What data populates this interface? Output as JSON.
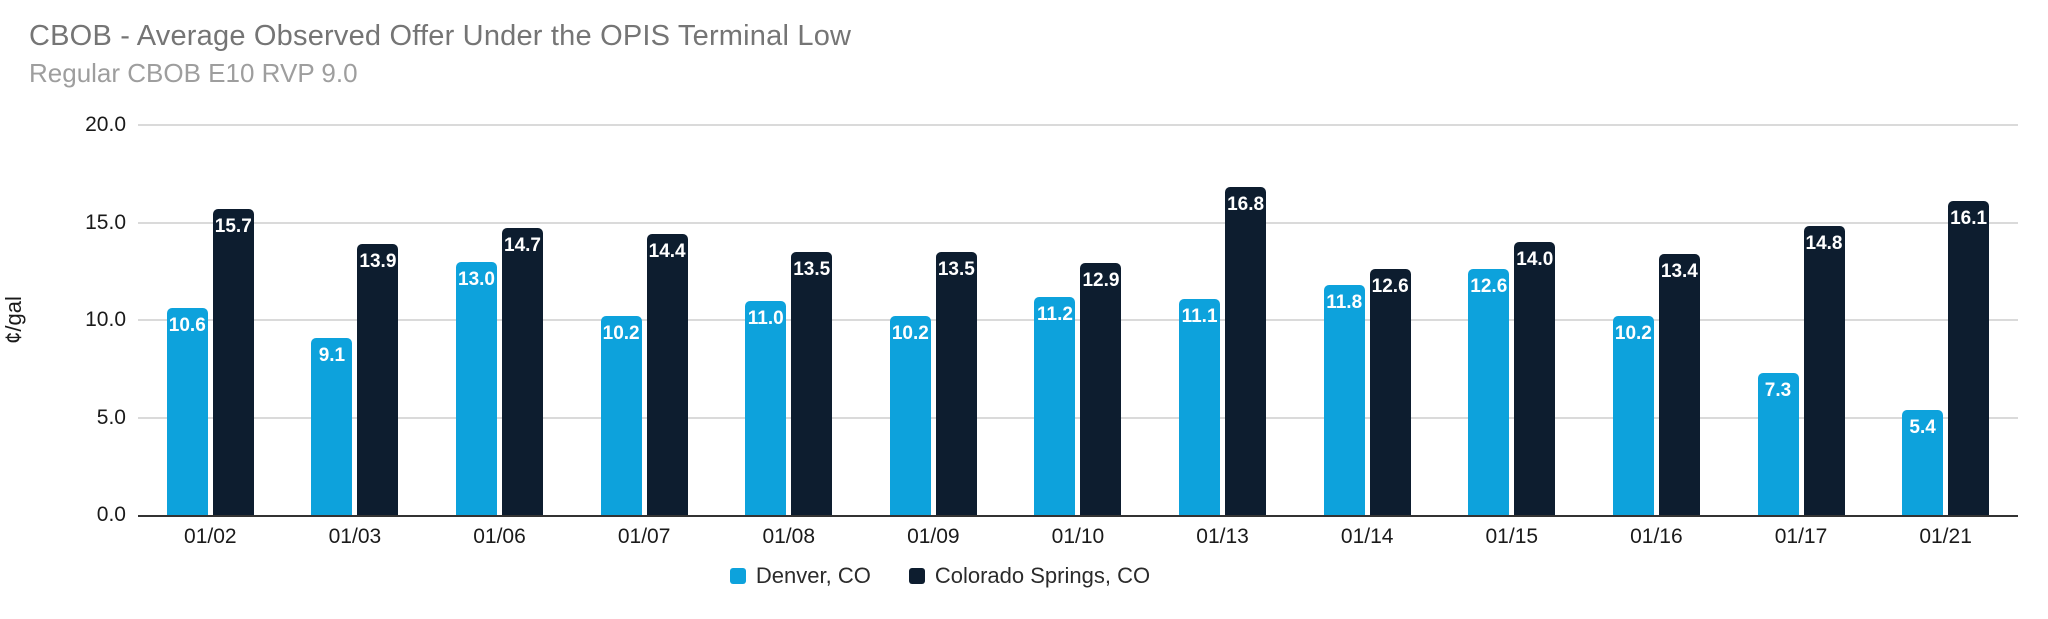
{
  "header": {
    "title": "CBOB - Average Observed Offer Under the OPIS Terminal Low",
    "subtitle": "Regular CBOB E10 RVP 9.0"
  },
  "colors": {
    "denver_series": "#0DA2DC",
    "colorado_springs_series": "#0D1D2F",
    "title_text": "#757575",
    "subtitle_text": "#9E9E9E",
    "gridline": "#DADADA",
    "axis_line": "#333333",
    "bar_value_text": "#FFFFFF"
  },
  "chart_data": {
    "type": "bar",
    "title": "CBOB - Average Observed Offer Under the OPIS Terminal Low",
    "subtitle": "Regular CBOB E10 RVP 9.0",
    "xlabel": "",
    "ylabel": "¢/gal",
    "ylim": [
      0,
      20
    ],
    "yticks": [
      0,
      5,
      10,
      15,
      20
    ],
    "ytick_labels": [
      "0.0",
      "5.0",
      "10.0",
      "15.0",
      "20.0"
    ],
    "grid": true,
    "legend_position": "bottom",
    "value_labels": "inside-top",
    "categories": [
      "01/02",
      "01/03",
      "01/06",
      "01/07",
      "01/08",
      "01/09",
      "01/10",
      "01/13",
      "01/14",
      "01/15",
      "01/16",
      "01/17",
      "01/21"
    ],
    "series": [
      {
        "name": "Denver, CO",
        "color": "#0DA2DC",
        "values": [
          10.6,
          9.1,
          13.0,
          10.2,
          11.0,
          10.2,
          11.2,
          11.1,
          11.8,
          12.6,
          10.2,
          7.3,
          5.4
        ]
      },
      {
        "name": "Colorado Springs, CO",
        "color": "#0D1D2F",
        "values": [
          15.7,
          13.9,
          14.7,
          14.4,
          13.5,
          13.5,
          12.9,
          16.8,
          12.6,
          14.0,
          13.4,
          14.8,
          16.1
        ]
      }
    ]
  }
}
